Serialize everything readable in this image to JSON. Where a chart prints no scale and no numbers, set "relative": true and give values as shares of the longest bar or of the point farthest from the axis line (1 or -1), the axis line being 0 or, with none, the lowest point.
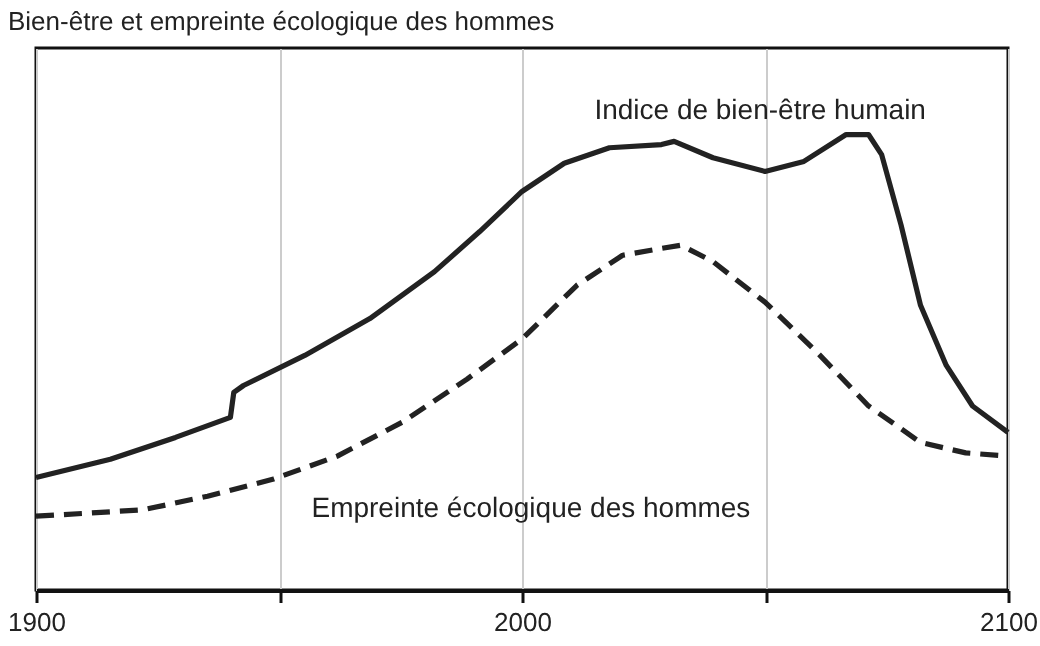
{
  "chart_data": {
    "type": "line",
    "title": "Bien-être et empreinte écologique des hommes",
    "relative": true,
    "xlim": [
      1900,
      2100
    ],
    "xticks": [
      1900,
      {
        "value": 1950,
        "label": null
      },
      2000,
      {
        "value": 2050,
        "label": null
      },
      2100
    ],
    "grid": "x",
    "series": [
      {
        "name": "Indice de bien-être humain",
        "color": "#222222",
        "line_style": "solid",
        "x": [
          1900,
          1915.3,
          1928.7,
          1940,
          1940.7,
          1942.7,
          1955.3,
          1968.7,
          1982,
          1991.3,
          2000,
          2008.7,
          2018,
          2028.7,
          2031.3,
          2039.3,
          2050,
          2058,
          2066.7,
          2071.3,
          2074,
          2078,
          2082,
          2087.3,
          2092.7,
          2100
        ],
        "values": [
          0.247,
          0.287,
          0.335,
          0.379,
          0.434,
          0.449,
          0.515,
          0.596,
          0.699,
          0.787,
          0.875,
          0.937,
          0.971,
          0.978,
          0.985,
          0.949,
          0.919,
          0.941,
          1.0,
          1.0,
          0.956,
          0.801,
          0.625,
          0.493,
          0.404,
          0.346
        ]
      },
      {
        "name": "Empreinte écologique des hommes",
        "color": "#222222",
        "line_style": "dashed",
        "x": [
          1900,
          1922,
          1935.3,
          1948.7,
          1962,
          1975.3,
          1988.7,
          2000,
          2011.3,
          2020.7,
          2028.7,
          2032.7,
          2039.3,
          2050,
          2060.7,
          2071.3,
          2082,
          2091.3,
          2100
        ],
        "values": [
          0.162,
          0.176,
          0.206,
          0.243,
          0.294,
          0.368,
          0.463,
          0.551,
          0.669,
          0.735,
          0.75,
          0.757,
          0.721,
          0.632,
          0.522,
          0.404,
          0.324,
          0.301,
          0.294
        ]
      }
    ]
  }
}
